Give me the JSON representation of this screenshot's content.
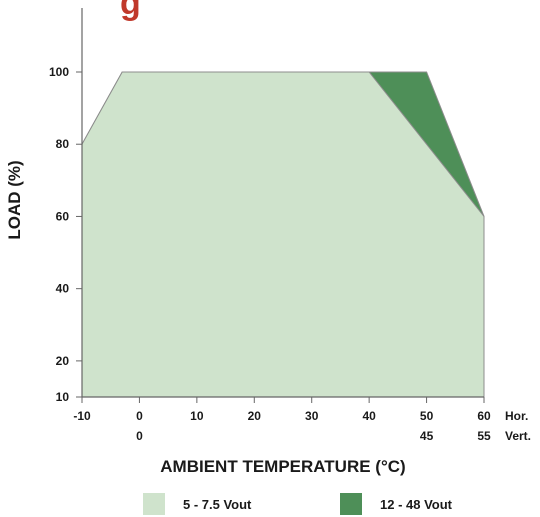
{
  "chart_data": {
    "type": "area",
    "title_fragment": "g",
    "ylabel": "LOAD (%)",
    "xlabel": "AMBIENT TEMPERATURE (°C)",
    "ylim": [
      10,
      100
    ],
    "xlim": [
      -10,
      60
    ],
    "y_ticks": [
      "10",
      "20",
      "40",
      "60",
      "80",
      "100"
    ],
    "x_ticks_hor": [
      "-10",
      "0",
      "10",
      "20",
      "30",
      "40",
      "50",
      "60"
    ],
    "x_ticks_vert": [
      "0",
      "45",
      "55"
    ],
    "x_row_labels": [
      "Hor.",
      "Vert."
    ],
    "series": [
      {
        "name": "5 - 7.5 Vout",
        "color": "#cfe3cc",
        "points": [
          [
            -10,
            80
          ],
          [
            -3,
            100
          ],
          [
            40,
            100
          ],
          [
            60,
            60
          ]
        ]
      },
      {
        "name": "12 - 48 Vout",
        "color": "#4e8f58",
        "points": [
          [
            -10,
            80
          ],
          [
            -3,
            100
          ],
          [
            50,
            100
          ],
          [
            60,
            60
          ]
        ]
      }
    ],
    "grid": false,
    "legend": "bottom"
  }
}
